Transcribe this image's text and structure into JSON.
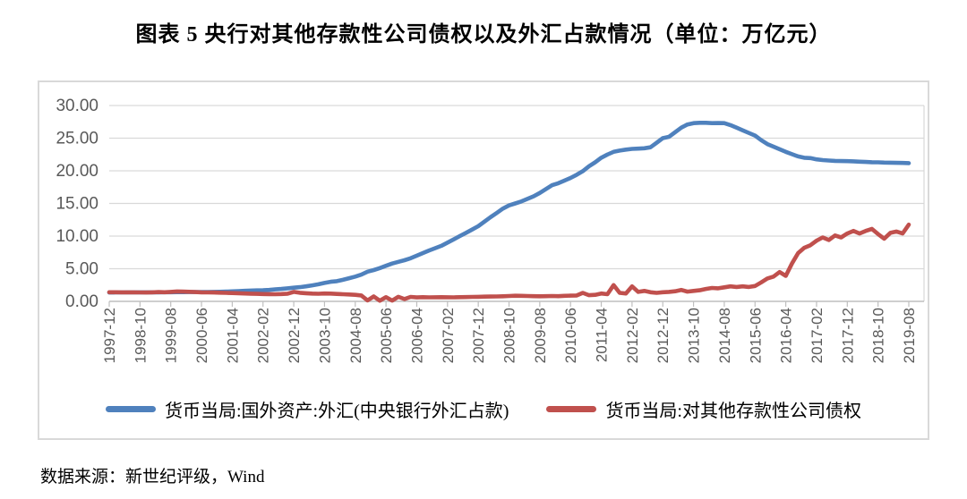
{
  "title": "图表 5  央行对其他存款性公司债权以及外汇占款情况（单位：万亿元）",
  "source": "数据来源：新世纪评级，Wind",
  "colors": {
    "blue_series": "#4f81bd",
    "red_series": "#c0504d",
    "gridline": "#d9d9d9",
    "axis_line": "#bfbfbf",
    "tick_text": "#595959",
    "box_border": "#d9d9d9"
  },
  "chart_data": {
    "type": "line",
    "title": "央行对其他存款性公司债权以及外汇占款情况",
    "unit": "万亿元",
    "grid": true,
    "legend_position": "bottom",
    "ylim": [
      0,
      30
    ],
    "y_ticks": [
      0,
      5,
      10,
      15,
      20,
      25,
      30
    ],
    "y_tick_labels": [
      "0.00",
      "5.00",
      "10.00",
      "15.00",
      "20.00",
      "25.00",
      "30.00"
    ],
    "x_start": "1997-12",
    "x_end": "2019-08",
    "x_point_step_months": 2,
    "x_tick_step_months": 10,
    "x_tick_labels": [
      "1997-12",
      "1998-10",
      "1999-08",
      "2000-06",
      "2001-04",
      "2002-02",
      "2002-12",
      "2003-10",
      "2004-08",
      "2005-06",
      "2006-04",
      "2007-02",
      "2007-12",
      "2008-10",
      "2009-08",
      "2010-06",
      "2011-04",
      "2012-02",
      "2012-12",
      "2013-10",
      "2014-08",
      "2015-06",
      "2016-04",
      "2017-02",
      "2017-12",
      "2018-10",
      "2019-08"
    ],
    "series": [
      {
        "name": "货币当局:国外资产:外汇(中央银行外汇占款)",
        "color": "#4f81bd",
        "values": [
          1.36,
          1.37,
          1.37,
          1.38,
          1.39,
          1.39,
          1.38,
          1.38,
          1.39,
          1.4,
          1.4,
          1.41,
          1.41,
          1.42,
          1.42,
          1.43,
          1.44,
          1.45,
          1.46,
          1.5,
          1.54,
          1.58,
          1.62,
          1.66,
          1.68,
          1.7,
          1.76,
          1.83,
          1.9,
          2.0,
          2.1,
          2.18,
          2.3,
          2.45,
          2.62,
          2.82,
          3.0,
          3.1,
          3.3,
          3.55,
          3.8,
          4.1,
          4.55,
          4.8,
          5.1,
          5.45,
          5.8,
          6.05,
          6.3,
          6.6,
          7.0,
          7.4,
          7.8,
          8.15,
          8.5,
          9.0,
          9.5,
          10.0,
          10.5,
          11.0,
          11.52,
          12.2,
          12.9,
          13.55,
          14.2,
          14.7,
          15.0,
          15.3,
          15.7,
          16.1,
          16.6,
          17.2,
          17.8,
          18.1,
          18.5,
          18.9,
          19.4,
          19.95,
          20.7,
          21.3,
          22.0,
          22.5,
          22.9,
          23.1,
          23.25,
          23.35,
          23.4,
          23.45,
          23.6,
          24.3,
          25.0,
          25.2,
          25.9,
          26.6,
          27.1,
          27.3,
          27.35,
          27.35,
          27.3,
          27.32,
          27.3,
          27.0,
          26.6,
          26.2,
          25.8,
          25.4,
          24.7,
          24.1,
          23.7,
          23.3,
          22.9,
          22.55,
          22.2,
          22.0,
          21.94,
          21.75,
          21.65,
          21.58,
          21.52,
          21.5,
          21.48,
          21.45,
          21.4,
          21.36,
          21.32,
          21.3,
          21.26,
          21.24,
          21.22,
          21.2,
          21.18
        ]
      },
      {
        "name": "货币当局:对其他存款性公司债权",
        "color": "#c0504d",
        "values": [
          1.4,
          1.4,
          1.39,
          1.38,
          1.38,
          1.37,
          1.36,
          1.38,
          1.42,
          1.4,
          1.45,
          1.52,
          1.5,
          1.46,
          1.42,
          1.39,
          1.37,
          1.35,
          1.33,
          1.3,
          1.27,
          1.24,
          1.21,
          1.18,
          1.15,
          1.13,
          1.11,
          1.1,
          1.12,
          1.18,
          1.45,
          1.32,
          1.24,
          1.19,
          1.17,
          1.21,
          1.19,
          1.14,
          1.09,
          1.05,
          1.0,
          0.9,
          0.15,
          0.75,
          0.1,
          0.65,
          0.12,
          0.7,
          0.35,
          0.68,
          0.6,
          0.65,
          0.62,
          0.63,
          0.65,
          0.63,
          0.62,
          0.64,
          0.66,
          0.68,
          0.7,
          0.72,
          0.74,
          0.76,
          0.78,
          0.82,
          0.86,
          0.85,
          0.82,
          0.8,
          0.78,
          0.8,
          0.82,
          0.8,
          0.85,
          0.88,
          0.9,
          1.3,
          0.95,
          1.0,
          1.2,
          1.1,
          2.5,
          1.3,
          1.2,
          2.3,
          1.45,
          1.6,
          1.4,
          1.3,
          1.4,
          1.45,
          1.55,
          1.75,
          1.5,
          1.6,
          1.7,
          1.9,
          2.05,
          2.0,
          2.15,
          2.3,
          2.2,
          2.3,
          2.2,
          2.35,
          2.9,
          3.5,
          3.8,
          4.5,
          3.9,
          5.8,
          7.4,
          8.2,
          8.6,
          9.3,
          9.8,
          9.4,
          10.1,
          9.8,
          10.4,
          10.8,
          10.4,
          10.8,
          11.1,
          10.3,
          9.6,
          10.5,
          10.7,
          10.4,
          11.75
        ]
      }
    ]
  }
}
